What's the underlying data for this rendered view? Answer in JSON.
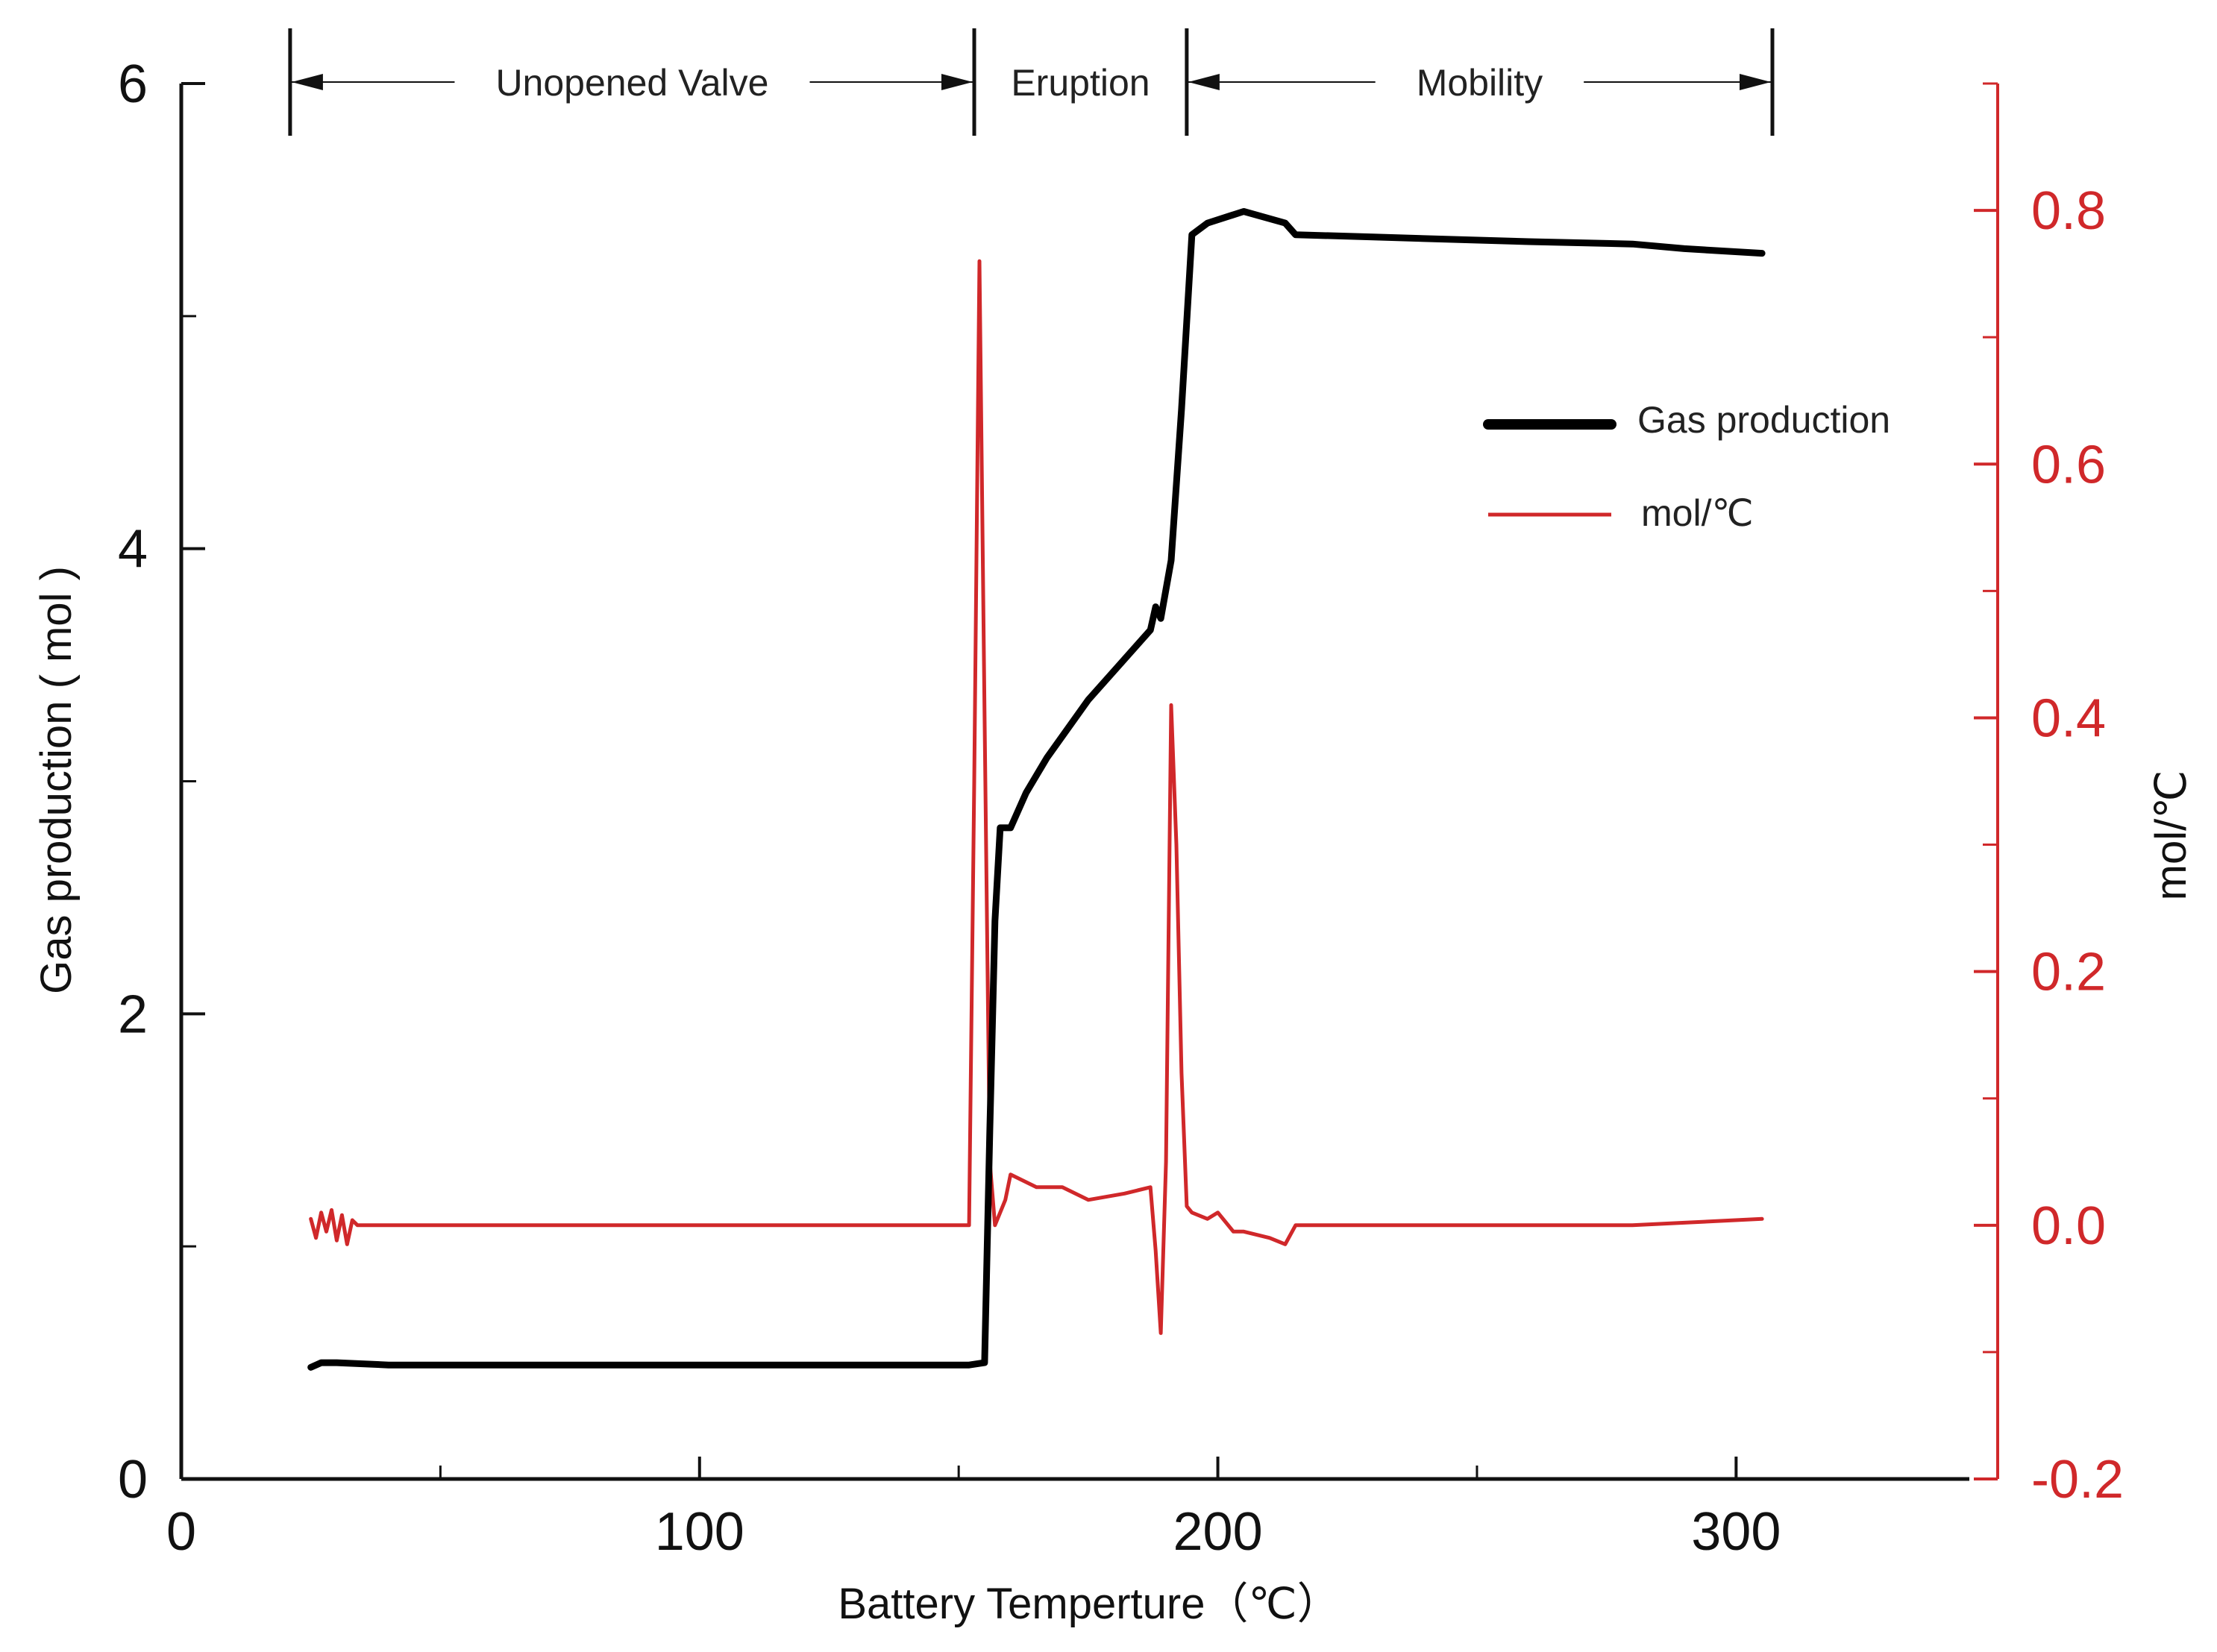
{
  "chart_data": {
    "type": "line",
    "xlabel": "Battery Temperture（℃）",
    "ylabel_left": "Gas production ( mol )",
    "ylabel_right": "mol/℃",
    "xlim": [
      0,
      345
    ],
    "ylim_left": [
      0,
      6
    ],
    "ylim_right": [
      -0.2,
      0.9
    ],
    "x_ticks": [
      0,
      100,
      200,
      300
    ],
    "x_minor_ticks": [
      50,
      150,
      250
    ],
    "y_left_ticks": [
      0,
      2,
      4,
      6
    ],
    "y_left_minor_ticks": [
      1,
      3,
      5
    ],
    "y_right_ticks": [
      -0.2,
      0.0,
      0.2,
      0.4,
      0.6,
      0.8
    ],
    "y_right_tick_labels": [
      "-0.2",
      "0.0",
      "0.2",
      "0.4",
      "0.6",
      "0.8"
    ],
    "y_right_minor_ticks": [
      -0.1,
      0.1,
      0.3,
      0.5,
      0.7,
      0.9
    ],
    "right_axis_color": "#d0282a",
    "phases": [
      {
        "label": "Unopened Valve",
        "x_start": 21,
        "x_end": 153
      },
      {
        "label": "Eruption",
        "x_start": 153,
        "x_end": 194
      },
      {
        "label": "Mobility",
        "x_start": 194,
        "x_end": 307
      }
    ],
    "legend": {
      "position": "upper-right",
      "entries": [
        {
          "label": "Gas production",
          "color": "#000000"
        },
        {
          "label": "mol/℃",
          "color": "#d0282a"
        }
      ]
    },
    "series": [
      {
        "name": "Gas production",
        "axis": "left",
        "color": "#000000",
        "x": [
          25,
          27,
          30,
          40,
          60,
          80,
          100,
          120,
          140,
          152,
          155,
          156,
          157,
          158,
          160,
          163,
          167,
          175,
          185,
          187,
          188,
          189,
          191,
          193,
          195,
          198,
          205,
          213,
          215,
          230,
          260,
          280,
          290,
          305
        ],
        "y": [
          0.48,
          0.5,
          0.5,
          0.49,
          0.49,
          0.49,
          0.49,
          0.49,
          0.49,
          0.49,
          0.5,
          1.5,
          2.4,
          2.8,
          2.8,
          2.95,
          3.1,
          3.35,
          3.6,
          3.65,
          3.75,
          3.7,
          3.95,
          4.6,
          5.35,
          5.4,
          5.45,
          5.4,
          5.35,
          5.34,
          5.32,
          5.31,
          5.29,
          5.27
        ]
      },
      {
        "name": "mol/℃",
        "axis": "right",
        "color": "#d0282a",
        "x": [
          25,
          26,
          27,
          28,
          29,
          30,
          31,
          32,
          33,
          34,
          40,
          50,
          70,
          90,
          110,
          130,
          145,
          152,
          153,
          154,
          155,
          156,
          157,
          159,
          160,
          165,
          170,
          175,
          182,
          187,
          188,
          189,
          190,
          191,
          192,
          193,
          194,
          195,
          198,
          200,
          203,
          205,
          210,
          213,
          215,
          230,
          260,
          280,
          290,
          305
        ],
        "y": [
          0.005,
          -0.01,
          0.01,
          -0.005,
          0.012,
          -0.012,
          0.008,
          -0.015,
          0.004,
          0.0,
          0.0,
          0.0,
          0.0,
          0.0,
          0.0,
          0.0,
          0.0,
          0.0,
          0.35,
          0.76,
          0.4,
          0.05,
          0.0,
          0.02,
          0.04,
          0.03,
          0.03,
          0.02,
          0.025,
          0.03,
          -0.02,
          -0.085,
          0.05,
          0.41,
          0.3,
          0.12,
          0.015,
          0.01,
          0.005,
          0.01,
          -0.005,
          -0.005,
          -0.01,
          -0.015,
          0.0,
          0.0,
          0.0,
          0.0,
          0.002,
          0.005
        ]
      }
    ]
  }
}
